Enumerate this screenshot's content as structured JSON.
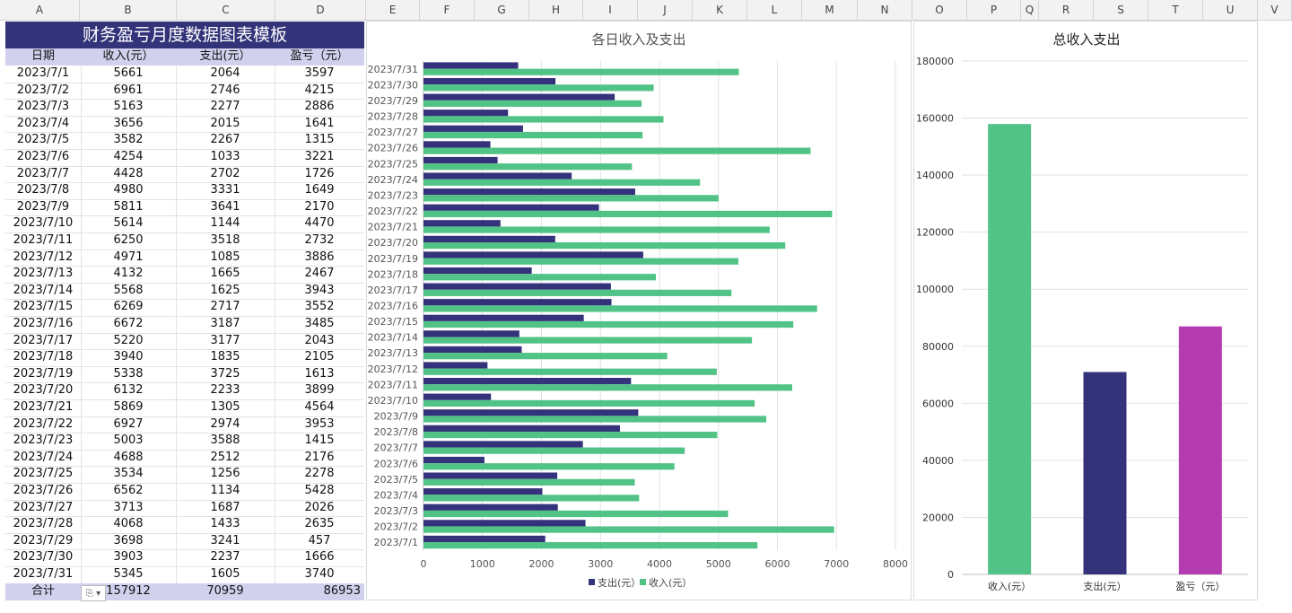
{
  "columns": [
    "A",
    "B",
    "C",
    "D",
    "E",
    "F",
    "G",
    "H",
    "I",
    "J",
    "K",
    "L",
    "M",
    "N",
    "O",
    "P",
    "Q",
    "R",
    "S",
    "T",
    "U",
    "V"
  ],
  "sheet": {
    "title": "财务盈亏月度数据图表模板",
    "headers": [
      "日期",
      "收入(元）",
      "支出(元）",
      "盈亏（元）"
    ],
    "rows": [
      [
        "2023/7/1",
        "5661",
        "2064",
        "3597"
      ],
      [
        "2023/7/2",
        "6961",
        "2746",
        "4215"
      ],
      [
        "2023/7/3",
        "5163",
        "2277",
        "2886"
      ],
      [
        "2023/7/4",
        "3656",
        "2015",
        "1641"
      ],
      [
        "2023/7/5",
        "3582",
        "2267",
        "1315"
      ],
      [
        "2023/7/6",
        "4254",
        "1033",
        "3221"
      ],
      [
        "2023/7/7",
        "4428",
        "2702",
        "1726"
      ],
      [
        "2023/7/8",
        "4980",
        "3331",
        "1649"
      ],
      [
        "2023/7/9",
        "5811",
        "3641",
        "2170"
      ],
      [
        "2023/7/10",
        "5614",
        "1144",
        "4470"
      ],
      [
        "2023/7/11",
        "6250",
        "3518",
        "2732"
      ],
      [
        "2023/7/12",
        "4971",
        "1085",
        "3886"
      ],
      [
        "2023/7/13",
        "4132",
        "1665",
        "2467"
      ],
      [
        "2023/7/14",
        "5568",
        "1625",
        "3943"
      ],
      [
        "2023/7/15",
        "6269",
        "2717",
        "3552"
      ],
      [
        "2023/7/16",
        "6672",
        "3187",
        "3485"
      ],
      [
        "2023/7/17",
        "5220",
        "3177",
        "2043"
      ],
      [
        "2023/7/18",
        "3940",
        "1835",
        "2105"
      ],
      [
        "2023/7/19",
        "5338",
        "3725",
        "1613"
      ],
      [
        "2023/7/20",
        "6132",
        "2233",
        "3899"
      ],
      [
        "2023/7/21",
        "5869",
        "1305",
        "4564"
      ],
      [
        "2023/7/22",
        "6927",
        "2974",
        "3953"
      ],
      [
        "2023/7/23",
        "5003",
        "3588",
        "1415"
      ],
      [
        "2023/7/24",
        "4688",
        "2512",
        "2176"
      ],
      [
        "2023/7/25",
        "3534",
        "1256",
        "2278"
      ],
      [
        "2023/7/26",
        "6562",
        "1134",
        "5428"
      ],
      [
        "2023/7/27",
        "3713",
        "1687",
        "2026"
      ],
      [
        "2023/7/28",
        "4068",
        "1433",
        "2635"
      ],
      [
        "2023/7/29",
        "3698",
        "3241",
        "457"
      ],
      [
        "2023/7/30",
        "3903",
        "2237",
        "1666"
      ],
      [
        "2023/7/31",
        "5345",
        "1605",
        "3740"
      ]
    ],
    "total": [
      "合计",
      "157912",
      "70959",
      "86953"
    ],
    "paste_icon_label": "⎘ ▾"
  },
  "colors": {
    "header_bg": "#33337a",
    "subheader_bg": "#d1d1ee",
    "income": "#52c386",
    "expense": "#33327a",
    "profit": "#b43bb0"
  },
  "chart_data": [
    {
      "type": "bar",
      "orientation": "horizontal",
      "title": "各日收入及支出",
      "categories": [
        "2023/7/1",
        "2023/7/2",
        "2023/7/3",
        "2023/7/4",
        "2023/7/5",
        "2023/7/6",
        "2023/7/7",
        "2023/7/8",
        "2023/7/9",
        "2023/7/10",
        "2023/7/11",
        "2023/7/12",
        "2023/7/13",
        "2023/7/14",
        "2023/7/15",
        "2023/7/16",
        "2023/7/17",
        "2023/7/18",
        "2023/7/19",
        "2023/7/20",
        "2023/7/21",
        "2023/7/22",
        "2023/7/23",
        "2023/7/24",
        "2023/7/25",
        "2023/7/26",
        "2023/7/27",
        "2023/7/28",
        "2023/7/29",
        "2023/7/30",
        "2023/7/31"
      ],
      "series": [
        {
          "name": "支出(元）",
          "color": "#33327a",
          "values": [
            2064,
            2746,
            2277,
            2015,
            2267,
            1033,
            2702,
            3331,
            3641,
            1144,
            3518,
            1085,
            1665,
            1625,
            2717,
            3187,
            3177,
            1835,
            3725,
            2233,
            1305,
            2974,
            3588,
            2512,
            1256,
            1134,
            1687,
            1433,
            3241,
            2237,
            1605
          ]
        },
        {
          "name": "收入(元）",
          "color": "#52c386",
          "values": [
            5661,
            6961,
            5163,
            3656,
            3582,
            4254,
            4428,
            4980,
            5811,
            5614,
            6250,
            4971,
            4132,
            5568,
            6269,
            6672,
            5220,
            3940,
            5338,
            6132,
            5869,
            6927,
            5003,
            4688,
            3534,
            6562,
            3713,
            4068,
            3698,
            3903,
            5345
          ]
        }
      ],
      "xlim": [
        0,
        8000
      ],
      "xticks": [
        "0",
        "1000",
        "2000",
        "3000",
        "4000",
        "5000",
        "6000",
        "7000",
        "8000"
      ],
      "grid": true,
      "legend": "bottom"
    },
    {
      "type": "bar",
      "title": "总收入支出",
      "categories": [
        "收入(元）",
        "支出(元）",
        "盈亏（元）"
      ],
      "values": [
        157912,
        70959,
        86953
      ],
      "colors": [
        "#52c386",
        "#33327a",
        "#b43bb0"
      ],
      "ylim": [
        0,
        180000
      ],
      "yticks": [
        "0",
        "20000",
        "40000",
        "60000",
        "80000",
        "100000",
        "120000",
        "140000",
        "160000",
        "180000"
      ],
      "grid": true
    }
  ]
}
